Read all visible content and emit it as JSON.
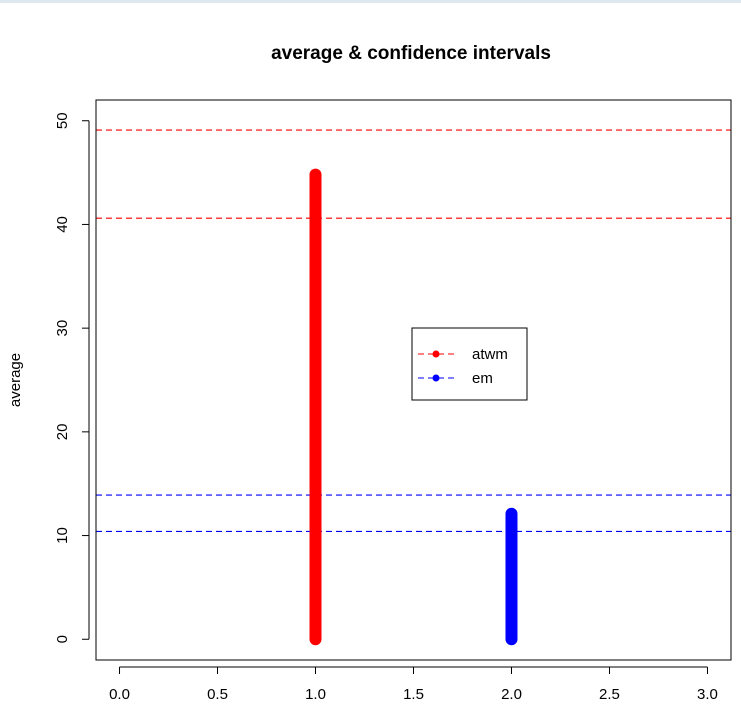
{
  "chart_data": {
    "type": "scatter",
    "title": "average & confidence intervals",
    "xlabel": "",
    "ylabel": "average",
    "xlim": [
      -0.12,
      3.12
    ],
    "ylim": [
      -2,
      52
    ],
    "x_ticks": [
      0.0,
      0.5,
      1.0,
      1.5,
      2.0,
      2.5,
      3.0
    ],
    "x_tick_labels": [
      "0.0",
      "0.5",
      "1.0",
      "1.5",
      "2.0",
      "2.5",
      "3.0"
    ],
    "y_ticks": [
      0,
      10,
      20,
      30,
      40,
      50
    ],
    "y_tick_labels": [
      "0",
      "10",
      "20",
      "30",
      "40",
      "50"
    ],
    "grid": false,
    "legend_position": "center",
    "series": [
      {
        "name": "atwm",
        "color": "#ff0000",
        "x": 1,
        "y_from": 0,
        "y_to": 44.8,
        "hlines": [
          40.6,
          49.1
        ]
      },
      {
        "name": "em",
        "color": "#0000ff",
        "x": 2,
        "y_from": 0,
        "y_to": 12.1,
        "hlines": [
          10.4,
          13.9
        ]
      }
    ]
  }
}
